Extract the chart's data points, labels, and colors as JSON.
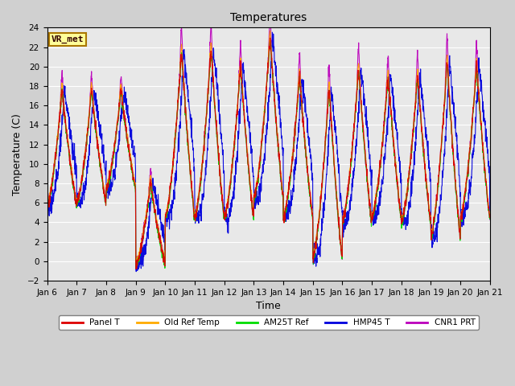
{
  "title": "Temperatures",
  "xlabel": "Time",
  "ylabel": "Temperature (C)",
  "ylim": [
    -2,
    24
  ],
  "yticks": [
    -2,
    0,
    2,
    4,
    6,
    8,
    10,
    12,
    14,
    16,
    18,
    20,
    22,
    24
  ],
  "xtick_labels": [
    "Jan 6",
    "Jan 7",
    "Jan 8",
    "Jan 9",
    "Jan 10",
    "Jan 11",
    "Jan 12",
    "Jan 13",
    "Jan 14",
    "Jan 15",
    "Jan 16",
    "Jan 17",
    "Jan 18",
    "Jan 19",
    "Jan 20",
    "Jan 21"
  ],
  "legend_entries": [
    "Panel T",
    "Old Ref Temp",
    "AM25T Ref",
    "HMP45 T",
    "CNR1 PRT"
  ],
  "legend_colors": [
    "#dd0000",
    "#ffaa00",
    "#00dd00",
    "#0000dd",
    "#bb00bb"
  ],
  "annotation_label": "VR_met",
  "annotation_box_facecolor": "#ffff99",
  "annotation_box_edgecolor": "#aa7700",
  "plot_bg_color": "#e8e8e8",
  "fig_bg_color": "#d0d0d0",
  "grid_color": "#ffffff",
  "line_width": 0.8,
  "title_fontsize": 10,
  "axis_label_fontsize": 9,
  "tick_fontsize": 7.5
}
